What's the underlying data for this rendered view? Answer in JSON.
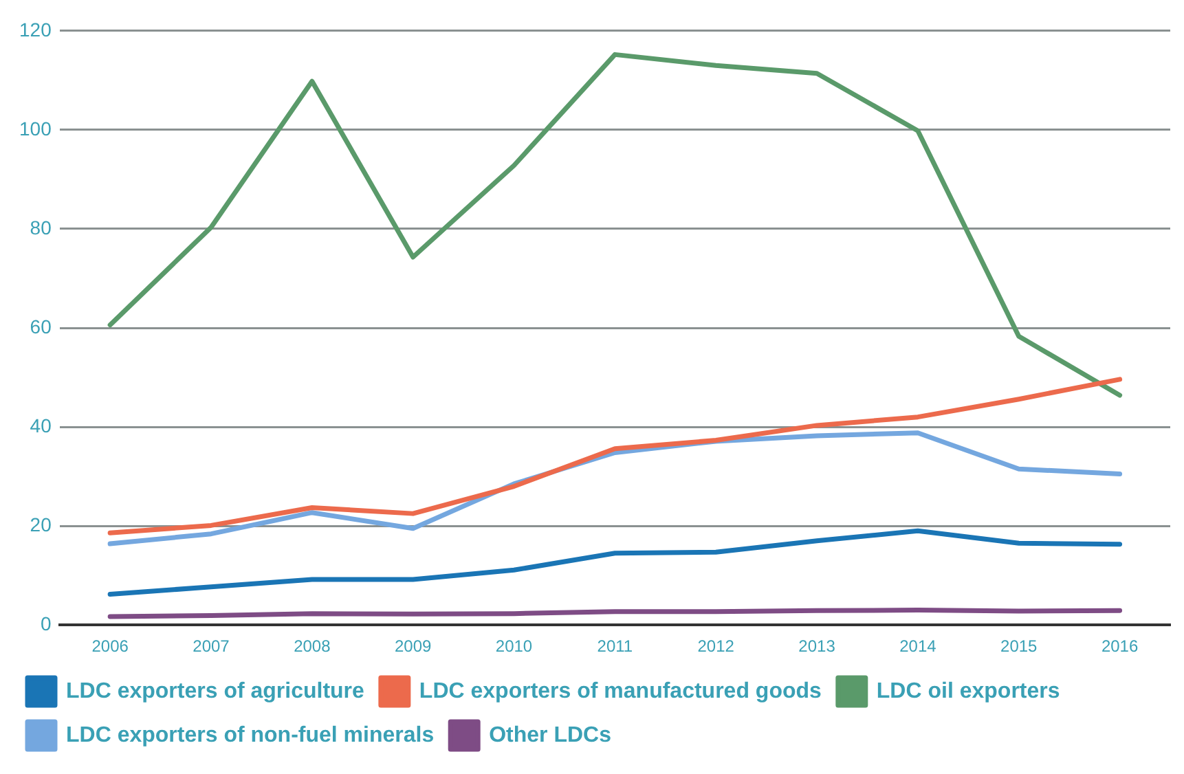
{
  "chart_data": {
    "type": "line",
    "categories": [
      "2006",
      "2007",
      "2008",
      "2009",
      "2010",
      "2011",
      "2012",
      "2013",
      "2014",
      "2015",
      "2016"
    ],
    "series": [
      {
        "name": "LDC exporters of agriculture",
        "color": "#1a75b5",
        "values": [
          6.2,
          7.7,
          9.2,
          9.2,
          11.1,
          14.5,
          14.7,
          17,
          19,
          16.5,
          16.3
        ]
      },
      {
        "name": "LDC exporters of manufactured goods",
        "color": "#ec6a4c",
        "values": [
          18.6,
          20.1,
          23.7,
          22.5,
          28,
          35.6,
          37.3,
          40.3,
          42,
          45.6,
          49.6
        ]
      },
      {
        "name": "LDC oil exporters",
        "color": "#5a9a6a",
        "values": [
          60.6,
          80.3,
          109.8,
          74.3,
          92.8,
          115.2,
          113,
          111.4,
          99.8,
          58.3,
          46.4
        ]
      },
      {
        "name": "LDC exporters of non-fuel minerals",
        "color": "#74a7df",
        "values": [
          16.4,
          18.4,
          22.7,
          19.5,
          28.5,
          34.8,
          37.1,
          38.2,
          38.8,
          31.5,
          30.5
        ]
      },
      {
        "name": "Other LDCs",
        "color": "#7e4c85",
        "values": [
          1.7,
          1.9,
          2.3,
          2.2,
          2.3,
          2.7,
          2.7,
          2.9,
          3,
          2.8,
          2.9
        ]
      }
    ],
    "ylim": [
      0,
      120
    ],
    "yticks": [
      0,
      20,
      40,
      60,
      80,
      100,
      120
    ],
    "grid": "y",
    "legend": "bottom",
    "marker": "none",
    "line_style": "solid"
  }
}
